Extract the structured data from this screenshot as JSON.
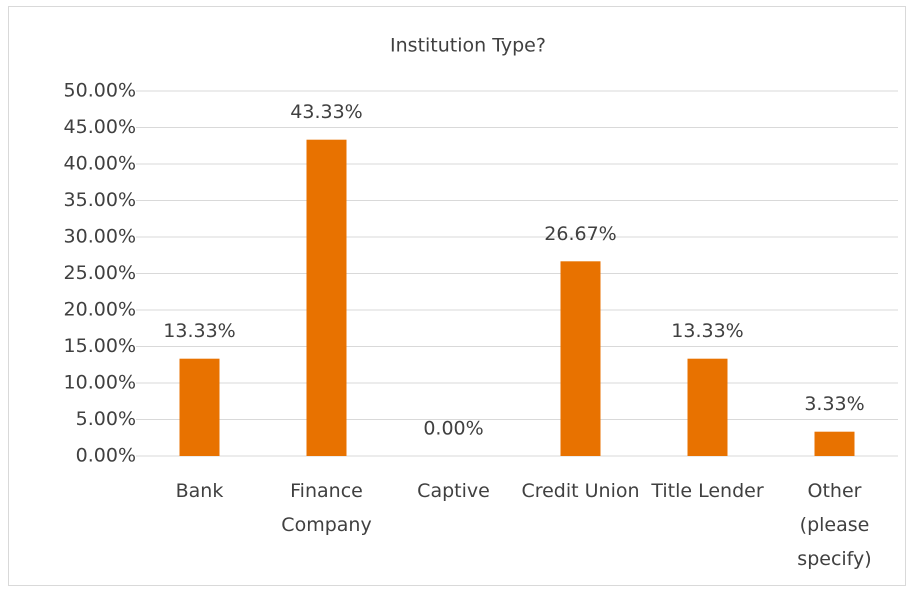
{
  "chart_data": {
    "type": "bar",
    "title": "Institution Type?",
    "categories": [
      "Bank",
      "Finance Company",
      "Captive",
      "Credit Union",
      "Title Lender",
      "Other (please specify)"
    ],
    "values": [
      13.33,
      43.33,
      0,
      26.67,
      13.33,
      3.33
    ],
    "value_labels": [
      "13.33%",
      "43.33%",
      "0.00%",
      "26.67%",
      "13.33%",
      "3.33%"
    ],
    "color": "#e87200",
    "ylim": [
      0,
      50
    ],
    "yticks": [
      {
        "value": 0,
        "label": "0.00%"
      },
      {
        "value": 5,
        "label": "5.00%"
      },
      {
        "value": 10,
        "label": "10.00%"
      },
      {
        "value": 15,
        "label": "15.00%"
      },
      {
        "value": 20,
        "label": "20.00%"
      },
      {
        "value": 25,
        "label": "25.00%"
      },
      {
        "value": 30,
        "label": "30.00%"
      },
      {
        "value": 35,
        "label": "35.00%"
      },
      {
        "value": 40,
        "label": "40.00%"
      },
      {
        "value": 45,
        "label": "45.00%"
      },
      {
        "value": 50,
        "label": "50.00%"
      }
    ],
    "grid": true
  }
}
